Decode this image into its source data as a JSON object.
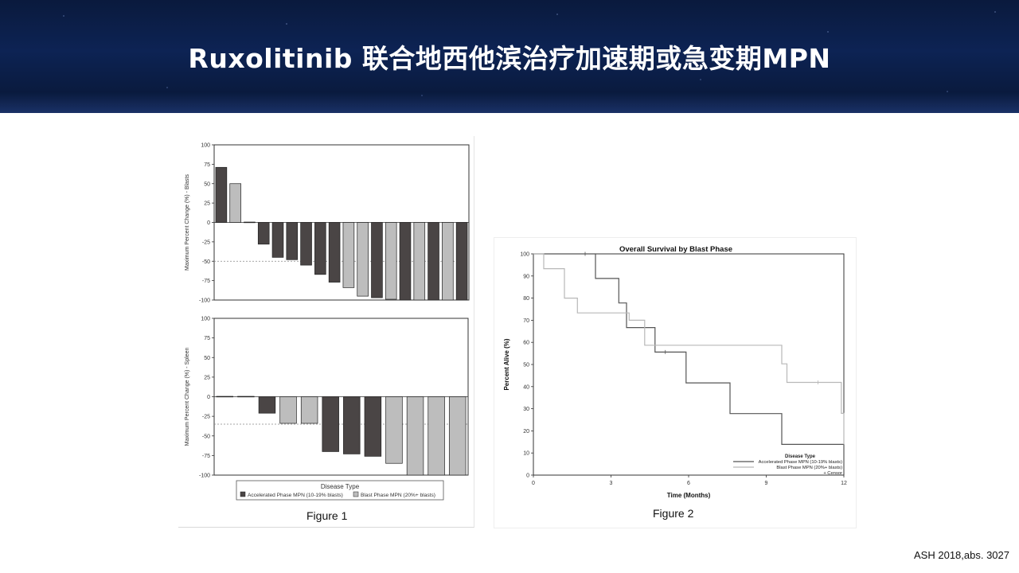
{
  "slide": {
    "title": "Ruxolitinib 联合地西他滨治疗加速期或急变期MPN",
    "citation": "ASH 2018,abs. 3027",
    "colors": {
      "banner": "#0d2354",
      "accelerated": "#4a4545",
      "blast": "#bdbdbd",
      "title_text": "#ffffff"
    }
  },
  "figure1": {
    "caption": "Figure 1",
    "legend": {
      "title": "Disease Type",
      "entries": [
        "Accelerated Phase MPN (10-19% blasts)",
        "Blast Phase MPN (20%+ blasts)"
      ]
    }
  },
  "figure2": {
    "caption": "Figure 2"
  },
  "chart_data": [
    {
      "type": "bar",
      "ylabel": "Maximum Percent Change (%) - Blasts",
      "ylim": [
        -100,
        100
      ],
      "yticks": [
        -100,
        -75,
        -50,
        -25,
        0,
        25,
        50,
        75,
        100
      ],
      "reference_line": -50,
      "legend_entries": [
        "Accelerated Phase MPN (10-19% blasts)",
        "Blast Phase MPN (20%+ blasts)"
      ],
      "bars": [
        {
          "value": 71,
          "group": "accelerated"
        },
        {
          "value": 50,
          "group": "blast"
        },
        {
          "value": 0.5,
          "group": "accelerated"
        },
        {
          "value": -28,
          "group": "accelerated"
        },
        {
          "value": -45,
          "group": "accelerated"
        },
        {
          "value": -48,
          "group": "accelerated"
        },
        {
          "value": -55,
          "group": "accelerated"
        },
        {
          "value": -67,
          "group": "accelerated"
        },
        {
          "value": -77,
          "group": "accelerated"
        },
        {
          "value": -84,
          "group": "blast"
        },
        {
          "value": -95,
          "group": "blast"
        },
        {
          "value": -97,
          "group": "accelerated"
        },
        {
          "value": -99,
          "group": "blast"
        },
        {
          "value": -100,
          "group": "accelerated"
        },
        {
          "value": -100,
          "group": "blast"
        },
        {
          "value": -100,
          "group": "accelerated"
        },
        {
          "value": -100,
          "group": "blast"
        },
        {
          "value": -100,
          "group": "accelerated"
        }
      ]
    },
    {
      "type": "bar",
      "ylabel": "Maximum Percent Change (%) - Spleen",
      "ylim": [
        -100,
        100
      ],
      "yticks": [
        -100,
        -75,
        -50,
        -25,
        0,
        25,
        50,
        75,
        100
      ],
      "reference_line": -35,
      "legend_entries": [
        "Accelerated Phase MPN (10-19% blasts)",
        "Blast Phase MPN (20%+ blasts)"
      ],
      "bars": [
        {
          "value": 0.5,
          "group": "accelerated"
        },
        {
          "value": 0.5,
          "group": "accelerated"
        },
        {
          "value": -21,
          "group": "accelerated"
        },
        {
          "value": -34,
          "group": "blast"
        },
        {
          "value": -34,
          "group": "blast"
        },
        {
          "value": -70,
          "group": "accelerated"
        },
        {
          "value": -73,
          "group": "accelerated"
        },
        {
          "value": -76,
          "group": "accelerated"
        },
        {
          "value": -85,
          "group": "blast"
        },
        {
          "value": -100,
          "group": "blast"
        },
        {
          "value": -100,
          "group": "blast"
        },
        {
          "value": -100,
          "group": "blast"
        }
      ]
    },
    {
      "type": "line",
      "title": "Overall Survival by Blast Phase",
      "xlabel": "Time (Months)",
      "ylabel": "Percent Alive (%)",
      "xlim": [
        0,
        12
      ],
      "ylim": [
        0,
        100
      ],
      "xticks": [
        0,
        3,
        6,
        9,
        12
      ],
      "yticks": [
        0,
        10,
        20,
        30,
        40,
        50,
        60,
        70,
        80,
        90,
        100
      ],
      "legend": {
        "title": "Disease Type",
        "censor_label": "+ Censor",
        "placement": "bottom-right"
      },
      "series": [
        {
          "name": "Accelerated Phase MPN (10-19% blasts)",
          "color": "#555555",
          "steps": [
            [
              0,
              100
            ],
            [
              2.4,
              100
            ],
            [
              2.4,
              88.9
            ],
            [
              3.3,
              88.9
            ],
            [
              3.3,
              77.8
            ],
            [
              3.6,
              77.8
            ],
            [
              3.6,
              66.7
            ],
            [
              4.7,
              66.7
            ],
            [
              4.7,
              55.6
            ],
            [
              5.9,
              55.6
            ],
            [
              5.9,
              41.7
            ],
            [
              7.6,
              41.7
            ],
            [
              7.6,
              27.8
            ],
            [
              9.6,
              27.8
            ],
            [
              9.6,
              13.9
            ],
            [
              12,
              13.9
            ]
          ],
          "censors": [
            [
              2.0,
              100
            ],
            [
              5.1,
              55.6
            ]
          ]
        },
        {
          "name": "Blast Phase MPN (20%+ blasts)",
          "color": "#b8b8b8",
          "steps": [
            [
              0,
              100
            ],
            [
              0.4,
              100
            ],
            [
              0.4,
              93.3
            ],
            [
              1.2,
              93.3
            ],
            [
              1.2,
              80
            ],
            [
              1.7,
              80
            ],
            [
              1.7,
              73.3
            ],
            [
              3.7,
              73.3
            ],
            [
              3.7,
              70
            ],
            [
              4.3,
              70
            ],
            [
              4.3,
              58.7
            ],
            [
              9.6,
              58.7
            ],
            [
              9.6,
              50.3
            ],
            [
              9.8,
              50.3
            ],
            [
              9.8,
              41.9
            ],
            [
              11.9,
              41.9
            ],
            [
              11.9,
              27.9
            ],
            [
              12,
              27.9
            ],
            [
              12,
              13.9
            ]
          ],
          "censors": [
            [
              11.0,
              41.9
            ]
          ]
        }
      ]
    }
  ]
}
